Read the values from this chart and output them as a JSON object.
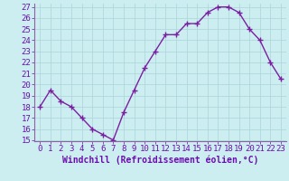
{
  "x": [
    0,
    1,
    2,
    3,
    4,
    5,
    6,
    7,
    8,
    9,
    10,
    11,
    12,
    13,
    14,
    15,
    16,
    17,
    18,
    19,
    20,
    21,
    22,
    23
  ],
  "y": [
    18,
    19.5,
    18.5,
    18,
    17,
    16,
    15.5,
    15,
    17.5,
    19.5,
    21.5,
    23,
    24.5,
    24.5,
    25.5,
    25.5,
    26.5,
    27,
    27,
    26.5,
    25,
    24,
    22,
    20.5
  ],
  "line_color": "#7b1fa2",
  "marker_color": "#7b1fa2",
  "bg_color": "#cceef0",
  "grid_color": "#b0d8dc",
  "xlabel": "Windchill (Refroidissement éolien,°C)",
  "ylim_min": 15,
  "ylim_max": 27,
  "xlim_min": -0.5,
  "xlim_max": 23.5,
  "yticks": [
    15,
    16,
    17,
    18,
    19,
    20,
    21,
    22,
    23,
    24,
    25,
    26,
    27
  ],
  "xlabel_fontsize": 7,
  "tick_fontsize": 6.5,
  "line_width": 1.0,
  "marker_size": 2.5
}
